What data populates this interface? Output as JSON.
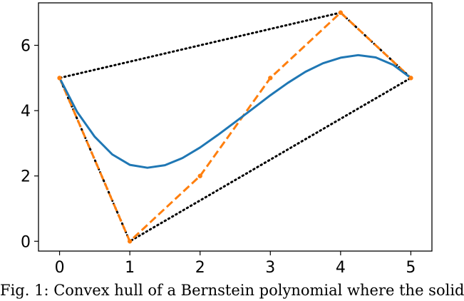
{
  "chart_data": {
    "type": "line",
    "title": "",
    "xlabel": "",
    "ylabel": "",
    "xlim": [
      -0.3,
      5.3
    ],
    "ylim": [
      -0.3,
      7.3
    ],
    "xticks": [
      0,
      1,
      2,
      3,
      4,
      5
    ],
    "yticks": [
      0,
      2,
      4,
      6
    ],
    "grid": false,
    "series": [
      {
        "role": "bernstein-curve",
        "style": "solid",
        "color": "#1f77b4",
        "x": [
          0,
          0.25,
          0.5,
          0.75,
          1.0,
          1.25,
          1.5,
          1.75,
          2.0,
          2.25,
          2.5,
          2.75,
          3.0,
          3.25,
          3.5,
          3.75,
          4.0,
          4.25,
          4.5,
          4.75,
          5.0
        ],
        "y": [
          5.0,
          3.96,
          3.2,
          2.66,
          2.34,
          2.25,
          2.33,
          2.55,
          2.87,
          3.25,
          3.65,
          4.06,
          4.47,
          4.85,
          5.19,
          5.45,
          5.62,
          5.7,
          5.63,
          5.4,
          5.0
        ]
      },
      {
        "role": "control-polygon",
        "style": "dashed",
        "color": "#ff7f0e",
        "x": [
          0,
          1,
          2,
          3,
          4,
          5
        ],
        "y": [
          5,
          0,
          2,
          5,
          7,
          5
        ]
      },
      {
        "role": "convex-hull",
        "style": "dotted",
        "color": "#000000",
        "x": [
          0,
          1,
          5,
          4,
          0
        ],
        "y": [
          5,
          0,
          5,
          7,
          5
        ]
      }
    ]
  },
  "caption": "Fig. 1: Convex hull of a Bernstein polynomial where the solid"
}
